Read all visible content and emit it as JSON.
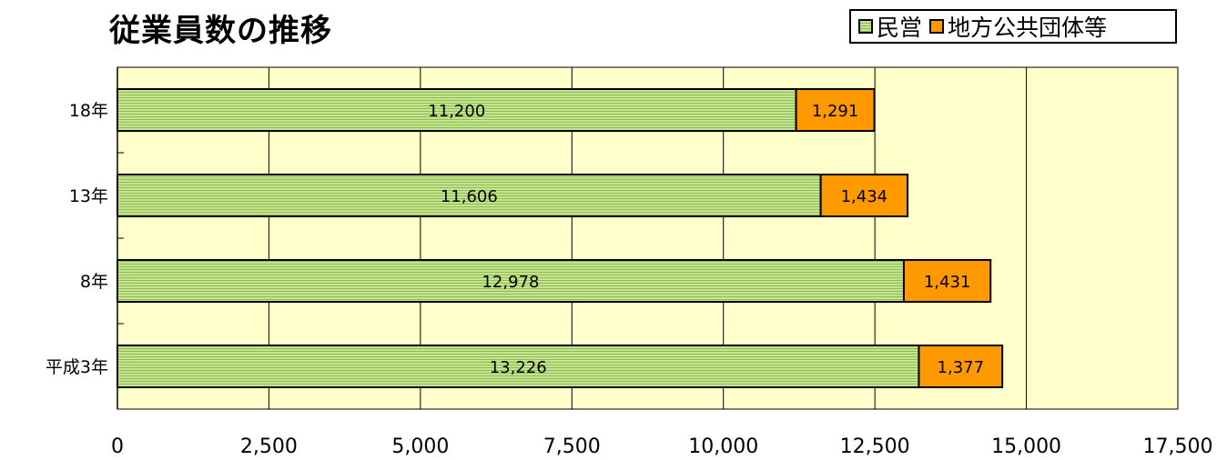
{
  "title": "従業員数の推移",
  "legend": {
    "private_label": "民営",
    "public_label": "地方公共団体等"
  },
  "colors": {
    "plot_background": "#ffffcc",
    "private_fill": "#c6e394",
    "private_stripe": "#8cbf4e",
    "public_fill": "#ff9900",
    "gridline": "#000000"
  },
  "chart_data": {
    "type": "bar",
    "orientation": "horizontal",
    "stacked": true,
    "title": "従業員数の推移",
    "categories": [
      "18年",
      "13年",
      "8年",
      "平成3年"
    ],
    "series": [
      {
        "name": "民営",
        "values": [
          11200,
          11606,
          12978,
          13226
        ],
        "labels": [
          "11,200",
          "11,606",
          "12,978",
          "13,226"
        ]
      },
      {
        "name": "地方公共団体等",
        "values": [
          1291,
          1434,
          1431,
          1377
        ],
        "labels": [
          "1,291",
          "1,434",
          "1,431",
          "1,377"
        ]
      }
    ],
    "xlim": [
      0,
      17500
    ],
    "xticks": [
      0,
      2500,
      5000,
      7500,
      10000,
      12500,
      15000,
      17500
    ],
    "xtick_labels": [
      "0",
      "2,500",
      "5,000",
      "7,500",
      "10,000",
      "12,500",
      "15,000",
      "17,500"
    ],
    "grid": "vertical",
    "legend_position": "top-right"
  }
}
